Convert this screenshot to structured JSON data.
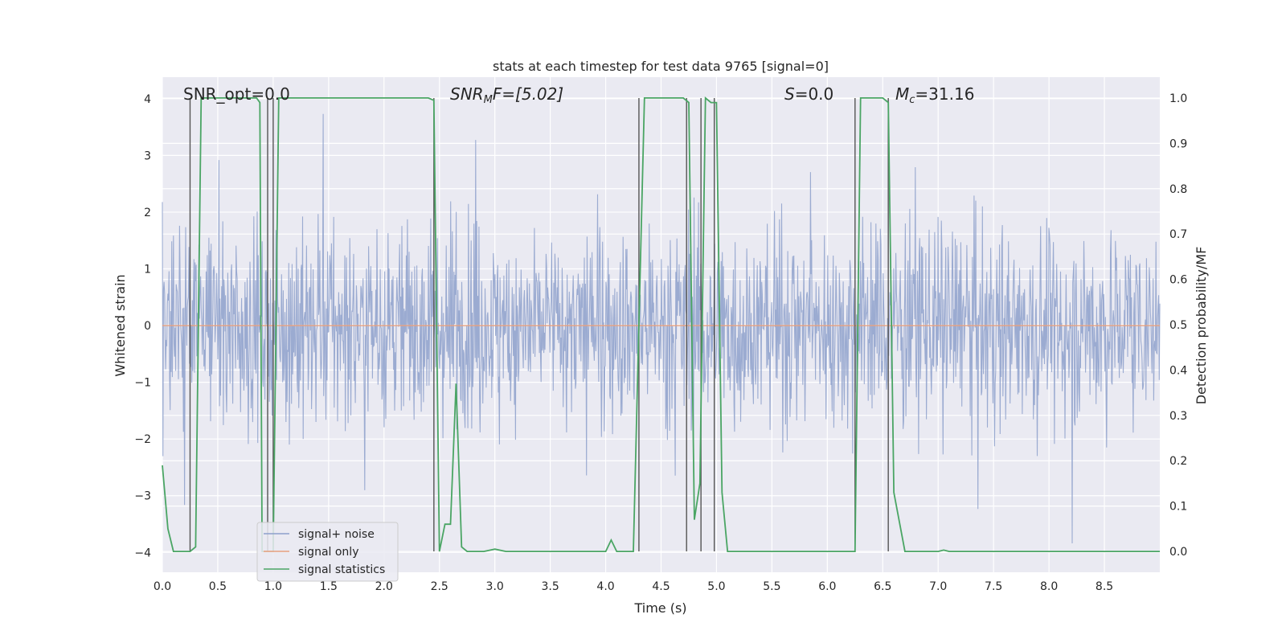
{
  "chart_data": {
    "type": "line",
    "title": "stats at each timestep for test data 9765 [signal=0]",
    "xlabel": "Time (s)",
    "ylabel_left": "Whitened strain",
    "ylabel_right": "Detection probability/MF",
    "xlim": [
      0,
      9.0
    ],
    "ylim_left": [
      -4.35,
      4.38
    ],
    "ylim_right": [
      -0.046,
      1.046
    ],
    "x_ticks": [
      "0.0",
      "0.5",
      "1.0",
      "1.5",
      "2.0",
      "2.5",
      "3.0",
      "3.5",
      "4.0",
      "4.5",
      "5.0",
      "5.5",
      "6.0",
      "6.5",
      "7.0",
      "7.5",
      "8.0",
      "8.5"
    ],
    "y_left_ticks": [
      "−4",
      "−3",
      "−2",
      "−1",
      "0",
      "1",
      "2",
      "3",
      "4"
    ],
    "y_right_ticks": [
      "0.0",
      "0.1",
      "0.2",
      "0.3",
      "0.4",
      "0.5",
      "0.6",
      "0.7",
      "0.8",
      "0.9",
      "1.0"
    ],
    "grid": true,
    "legend_position": "lower-left",
    "annotations": {
      "snr_opt": "SNR_opt=0.0",
      "snr_mf_prefix": "SNR",
      "snr_mf_sub": "M",
      "snr_mf_rest": "F=[5.02]",
      "s_prefix": "S",
      "s_rest": "=0.0",
      "mc_prefix": "M",
      "mc_sub": "c",
      "mc_rest": "=31.16"
    },
    "series": [
      {
        "name": "signal+ noise",
        "color": "#8da0cb",
        "kind": "noise",
        "amplitude_typical": 2.0,
        "amplitude_max": 4.0
      },
      {
        "name": "signal only",
        "color": "#e8a07e",
        "kind": "flat",
        "y": 0.0
      },
      {
        "name": "signal statistics",
        "color": "#4aa564",
        "axis": "right",
        "x": [
          0.0,
          0.05,
          0.1,
          0.2,
          0.25,
          0.3,
          0.35,
          0.45,
          0.55,
          0.7,
          0.85,
          0.88,
          0.9,
          1.0,
          1.05,
          1.1,
          1.5,
          2.0,
          2.4,
          2.45,
          2.5,
          2.55,
          2.6,
          2.65,
          2.7,
          2.75,
          2.9,
          3.0,
          3.1,
          3.5,
          4.0,
          4.05,
          4.1,
          4.25,
          4.3,
          4.35,
          4.4,
          4.5,
          4.7,
          4.75,
          4.8,
          4.85,
          4.9,
          4.95,
          5.0,
          5.05,
          5.1,
          5.2,
          5.5,
          6.0,
          6.2,
          6.25,
          6.3,
          6.4,
          6.5,
          6.55,
          6.6,
          6.7,
          6.8,
          7.0,
          7.05,
          7.1,
          7.2,
          8.0,
          8.5,
          9.0
        ],
        "y": [
          0.19,
          0.05,
          0.0,
          0.0,
          0.0,
          0.01,
          1.0,
          1.0,
          1.0,
          1.0,
          1.0,
          0.99,
          0.0,
          0.0,
          1.0,
          1.0,
          1.0,
          1.0,
          1.0,
          0.995,
          0.0,
          0.06,
          0.06,
          0.37,
          0.01,
          0.0,
          0.0,
          0.005,
          0.0,
          0.0,
          0.0,
          0.025,
          0.0,
          0.0,
          0.5,
          1.0,
          1.0,
          1.0,
          1.0,
          0.99,
          0.07,
          0.15,
          1.0,
          0.99,
          0.99,
          0.13,
          0.0,
          0.0,
          0.0,
          0.0,
          0.0,
          0.0,
          1.0,
          1.0,
          1.0,
          0.99,
          0.13,
          0.0,
          0.0,
          0.0,
          0.003,
          0.0,
          0.0,
          0.0,
          0.0,
          0.0
        ]
      },
      {
        "name": "trigger markers",
        "color": "#555555",
        "kind": "vlines",
        "axis": "right",
        "x": [
          0.25,
          0.95,
          1.0,
          2.45,
          4.3,
          4.73,
          4.86,
          4.98,
          6.25,
          6.55
        ],
        "y_range": [
          0.0,
          1.0
        ]
      }
    ]
  }
}
